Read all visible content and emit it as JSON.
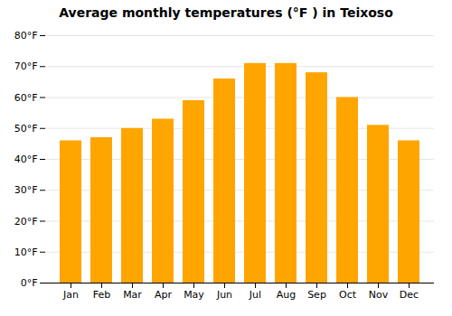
{
  "chart_data": {
    "type": "bar",
    "title": "Average monthly temperatures (°F ) in Teixoso",
    "categories": [
      "Jan",
      "Feb",
      "Mar",
      "Apr",
      "May",
      "Jun",
      "Jul",
      "Aug",
      "Sep",
      "Oct",
      "Nov",
      "Dec"
    ],
    "values": [
      46,
      47,
      50,
      53,
      59,
      66,
      71,
      71,
      68,
      60,
      51,
      46
    ],
    "color": "#FFA500",
    "ylim": [
      0,
      80
    ],
    "yticks": [
      {
        "value": 0,
        "label": "0°F"
      },
      {
        "value": 10,
        "label": "10°F"
      },
      {
        "value": 20,
        "label": "20°F"
      },
      {
        "value": 30,
        "label": "30°F"
      },
      {
        "value": 40,
        "label": "40°F"
      },
      {
        "value": 50,
        "label": "50°F"
      },
      {
        "value": 60,
        "label": "60°F"
      },
      {
        "value": 70,
        "label": "70°F"
      },
      {
        "value": 80,
        "label": "80°F"
      }
    ],
    "grid": true
  }
}
